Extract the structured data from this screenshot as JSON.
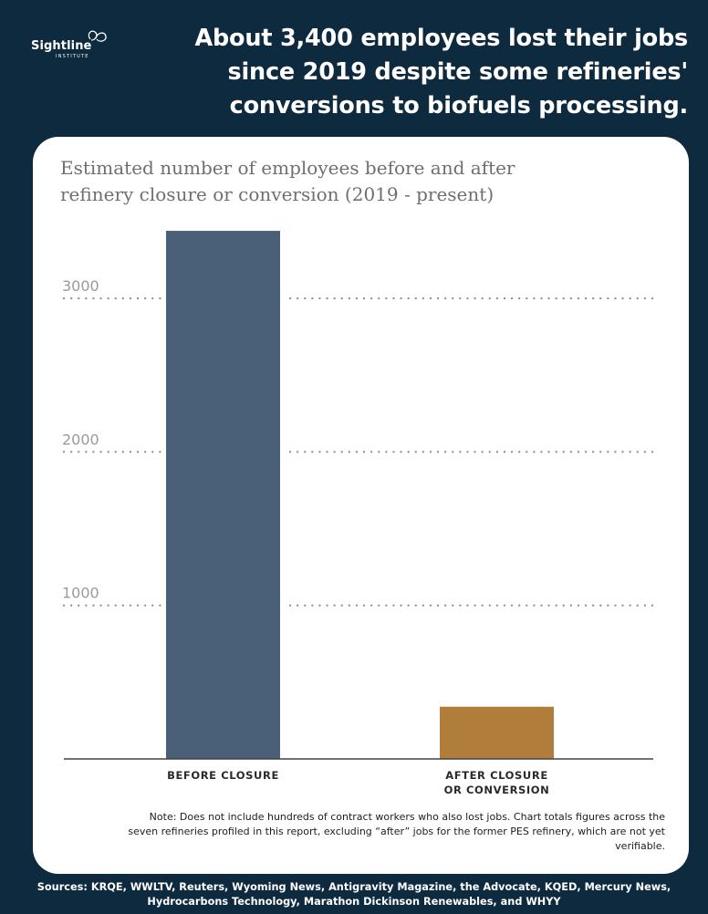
{
  "brand": {
    "name": "Sightline",
    "sub": "INSTITUTE"
  },
  "headline": "About 3,400 employees lost their jobs since 2019 despite some refineries' conversions to biofuels processing.",
  "chart_data": {
    "type": "bar",
    "title": "Estimated number of employees before and after refinery closure or conversion (2019 - present)",
    "categories": [
      [
        "Before closure"
      ],
      [
        "After closure",
        "or conversion"
      ]
    ],
    "values": [
      3440,
      340
    ],
    "colors": [
      "#4a6079",
      "#b07e3a"
    ],
    "yticks": [
      1000,
      2000,
      3000
    ],
    "ylim": [
      0,
      3700
    ],
    "grid": true,
    "xlabel": "",
    "ylabel": ""
  },
  "note": "Note: Does not include hundreds of contract workers who also lost jobs. Chart totals figures across the seven refineries profiled in this report, excluding “after” jobs for the former PES refinery, which are not yet verifiable.",
  "sources": "Sources: KRQE, WWLTV, Reuters, Wyoming News, Antigravity Magazine, the Advocate, KQED, Mercury News, Hydrocarbons Technology, Marathon Dickinson Renewables, and WHYY"
}
